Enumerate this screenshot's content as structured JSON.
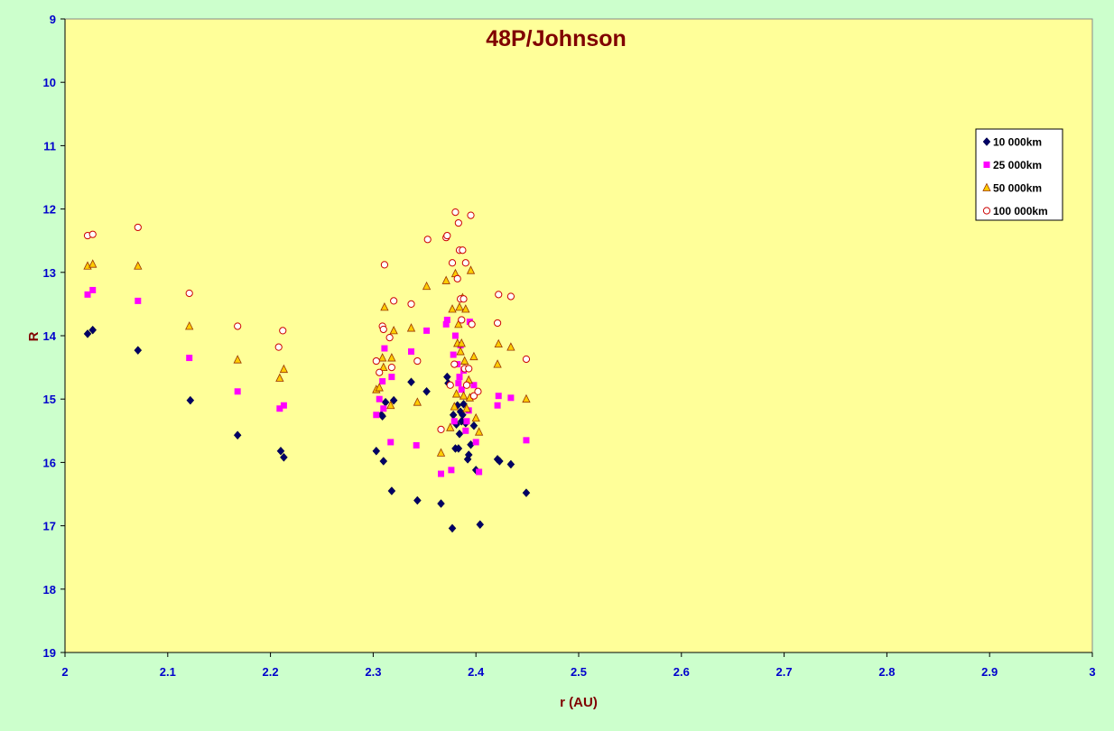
{
  "chart_data": {
    "type": "scatter",
    "title": "48P/Johnson",
    "xlabel": "r (AU)",
    "ylabel": "R",
    "xlim": [
      2,
      3
    ],
    "ylim": [
      9,
      19
    ],
    "y_inverted": true,
    "x_ticks": [
      "2",
      "2.1",
      "2.2",
      "2.3",
      "2.4",
      "2.5",
      "2.6",
      "2.7",
      "2.8",
      "2.9",
      "3"
    ],
    "y_ticks": [
      "9",
      "10",
      "11",
      "12",
      "13",
      "14",
      "15",
      "16",
      "17",
      "18",
      "19"
    ],
    "grid": false,
    "legend_position": "right",
    "colors": {
      "plot_background": "#ffff99",
      "page_background": "#ccffcc",
      "tick_labels": "#0000cc",
      "titles": "#800000"
    },
    "series": [
      {
        "name": "10 000km",
        "marker": "diamond",
        "color": "#000066",
        "points": [
          [
            2.022,
            13.97
          ],
          [
            2.027,
            13.91
          ],
          [
            2.071,
            14.23
          ],
          [
            2.122,
            15.02
          ],
          [
            2.168,
            15.57
          ],
          [
            2.21,
            15.82
          ],
          [
            2.213,
            15.92
          ],
          [
            2.303,
            15.82
          ],
          [
            2.308,
            15.25
          ],
          [
            2.309,
            15.27
          ],
          [
            2.31,
            15.98
          ],
          [
            2.312,
            15.05
          ],
          [
            2.318,
            16.45
          ],
          [
            2.32,
            15.02
          ],
          [
            2.337,
            14.73
          ],
          [
            2.343,
            16.6
          ],
          [
            2.352,
            14.88
          ],
          [
            2.366,
            16.65
          ],
          [
            2.372,
            14.65
          ],
          [
            2.373,
            14.75
          ],
          [
            2.377,
            17.04
          ],
          [
            2.378,
            15.25
          ],
          [
            2.38,
            15.78
          ],
          [
            2.381,
            15.4
          ],
          [
            2.382,
            15.1
          ],
          [
            2.383,
            15.78
          ],
          [
            2.384,
            15.55
          ],
          [
            2.385,
            15.2
          ],
          [
            2.386,
            15.35
          ],
          [
            2.387,
            15.25
          ],
          [
            2.388,
            15.08
          ],
          [
            2.39,
            15.38
          ],
          [
            2.392,
            15.95
          ],
          [
            2.393,
            15.88
          ],
          [
            2.395,
            15.72
          ],
          [
            2.398,
            15.42
          ],
          [
            2.4,
            16.12
          ],
          [
            2.404,
            16.98
          ],
          [
            2.421,
            15.95
          ],
          [
            2.423,
            15.98
          ],
          [
            2.434,
            16.03
          ],
          [
            2.449,
            16.48
          ]
        ]
      },
      {
        "name": "25 000km",
        "marker": "square",
        "color": "#ff00ff",
        "points": [
          [
            2.022,
            13.35
          ],
          [
            2.027,
            13.28
          ],
          [
            2.071,
            13.45
          ],
          [
            2.121,
            14.35
          ],
          [
            2.168,
            14.88
          ],
          [
            2.209,
            15.15
          ],
          [
            2.213,
            15.1
          ],
          [
            2.303,
            15.25
          ],
          [
            2.306,
            15.0
          ],
          [
            2.309,
            14.72
          ],
          [
            2.31,
            15.15
          ],
          [
            2.311,
            14.2
          ],
          [
            2.317,
            15.68
          ],
          [
            2.318,
            14.65
          ],
          [
            2.337,
            14.25
          ],
          [
            2.342,
            15.73
          ],
          [
            2.352,
            13.92
          ],
          [
            2.366,
            16.18
          ],
          [
            2.371,
            13.82
          ],
          [
            2.372,
            13.75
          ],
          [
            2.376,
            16.12
          ],
          [
            2.378,
            14.3
          ],
          [
            2.379,
            15.35
          ],
          [
            2.38,
            14.0
          ],
          [
            2.382,
            14.45
          ],
          [
            2.383,
            14.75
          ],
          [
            2.384,
            14.65
          ],
          [
            2.385,
            14.15
          ],
          [
            2.386,
            14.85
          ],
          [
            2.388,
            14.55
          ],
          [
            2.39,
            15.5
          ],
          [
            2.391,
            15.35
          ],
          [
            2.393,
            15.18
          ],
          [
            2.394,
            13.78
          ],
          [
            2.398,
            14.78
          ],
          [
            2.4,
            15.68
          ],
          [
            2.403,
            16.15
          ],
          [
            2.421,
            15.1
          ],
          [
            2.422,
            14.95
          ],
          [
            2.434,
            14.98
          ],
          [
            2.449,
            15.65
          ]
        ]
      },
      {
        "name": "50 000km",
        "marker": "triangle",
        "color": "#ffcc00",
        "points": [
          [
            2.022,
            12.9
          ],
          [
            2.027,
            12.87
          ],
          [
            2.071,
            12.9
          ],
          [
            2.121,
            13.85
          ],
          [
            2.168,
            14.38
          ],
          [
            2.209,
            14.67
          ],
          [
            2.213,
            14.53
          ],
          [
            2.303,
            14.85
          ],
          [
            2.306,
            14.82
          ],
          [
            2.309,
            14.35
          ],
          [
            2.31,
            14.5
          ],
          [
            2.311,
            13.55
          ],
          [
            2.317,
            15.1
          ],
          [
            2.318,
            14.35
          ],
          [
            2.32,
            13.92
          ],
          [
            2.337,
            13.88
          ],
          [
            2.343,
            15.05
          ],
          [
            2.352,
            13.22
          ],
          [
            2.366,
            15.85
          ],
          [
            2.371,
            13.13
          ],
          [
            2.375,
            15.45
          ],
          [
            2.377,
            13.58
          ],
          [
            2.379,
            15.12
          ],
          [
            2.38,
            13.02
          ],
          [
            2.381,
            14.92
          ],
          [
            2.382,
            14.12
          ],
          [
            2.383,
            13.82
          ],
          [
            2.384,
            13.55
          ],
          [
            2.385,
            14.25
          ],
          [
            2.386,
            14.12
          ],
          [
            2.387,
            13.4
          ],
          [
            2.388,
            14.95
          ],
          [
            2.389,
            14.4
          ],
          [
            2.39,
            13.58
          ],
          [
            2.391,
            15.15
          ],
          [
            2.393,
            14.7
          ],
          [
            2.394,
            14.98
          ],
          [
            2.395,
            12.97
          ],
          [
            2.398,
            14.33
          ],
          [
            2.4,
            15.3
          ],
          [
            2.403,
            15.52
          ],
          [
            2.421,
            14.45
          ],
          [
            2.422,
            14.13
          ],
          [
            2.434,
            14.18
          ],
          [
            2.449,
            15.0
          ]
        ]
      },
      {
        "name": "100 000km",
        "marker": "circle",
        "color": "#cc0000",
        "points": [
          [
            2.022,
            12.42
          ],
          [
            2.027,
            12.4
          ],
          [
            2.071,
            12.29
          ],
          [
            2.121,
            13.33
          ],
          [
            2.168,
            13.85
          ],
          [
            2.208,
            14.18
          ],
          [
            2.212,
            13.92
          ],
          [
            2.303,
            14.4
          ],
          [
            2.306,
            14.58
          ],
          [
            2.309,
            13.85
          ],
          [
            2.31,
            13.9
          ],
          [
            2.311,
            12.88
          ],
          [
            2.316,
            14.03
          ],
          [
            2.318,
            14.5
          ],
          [
            2.32,
            13.45
          ],
          [
            2.337,
            13.5
          ],
          [
            2.343,
            14.4
          ],
          [
            2.353,
            12.48
          ],
          [
            2.366,
            15.48
          ],
          [
            2.371,
            12.45
          ],
          [
            2.372,
            12.42
          ],
          [
            2.375,
            14.78
          ],
          [
            2.377,
            12.85
          ],
          [
            2.379,
            14.45
          ],
          [
            2.38,
            12.05
          ],
          [
            2.382,
            13.1
          ],
          [
            2.383,
            12.22
          ],
          [
            2.384,
            12.65
          ],
          [
            2.385,
            13.42
          ],
          [
            2.386,
            13.75
          ],
          [
            2.387,
            12.65
          ],
          [
            2.388,
            13.42
          ],
          [
            2.389,
            14.52
          ],
          [
            2.39,
            12.85
          ],
          [
            2.391,
            14.78
          ],
          [
            2.393,
            14.52
          ],
          [
            2.395,
            12.1
          ],
          [
            2.396,
            13.82
          ],
          [
            2.398,
            14.95
          ],
          [
            2.402,
            14.88
          ],
          [
            2.421,
            13.8
          ],
          [
            2.422,
            13.35
          ],
          [
            2.434,
            13.38
          ],
          [
            2.449,
            14.37
          ]
        ]
      }
    ]
  }
}
